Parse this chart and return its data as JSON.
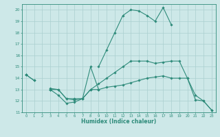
{
  "xlabel": "Humidex (Indice chaleur)",
  "x": [
    0,
    1,
    2,
    3,
    4,
    5,
    6,
    7,
    8,
    9,
    10,
    11,
    12,
    13,
    14,
    15,
    16,
    17,
    18,
    19,
    20,
    21,
    22,
    23
  ],
  "line1": [
    14.3,
    13.8,
    null,
    13.0,
    12.5,
    11.8,
    11.9,
    12.2,
    15.0,
    13.0,
    null,
    null,
    null,
    null,
    null,
    null,
    null,
    null,
    null,
    null,
    null,
    null,
    null,
    null
  ],
  "line2": [
    14.3,
    13.8,
    null,
    13.0,
    13.0,
    12.2,
    12.1,
    12.2,
    13.0,
    13.0,
    13.2,
    13.3,
    13.4,
    13.6,
    13.8,
    14.0,
    14.1,
    14.2,
    14.0,
    14.0,
    14.0,
    12.1,
    12.0,
    11.2
  ],
  "line3": [
    14.3,
    null,
    null,
    13.1,
    13.0,
    12.2,
    12.2,
    12.2,
    13.0,
    13.5,
    14.0,
    14.5,
    15.0,
    15.5,
    15.5,
    15.5,
    15.3,
    15.4,
    15.5,
    15.5,
    14.0,
    12.5,
    12.0,
    11.2
  ],
  "line4": [
    14.3,
    null,
    null,
    13.0,
    null,
    null,
    null,
    null,
    null,
    15.0,
    16.5,
    18.0,
    19.5,
    20.0,
    19.9,
    19.5,
    19.0,
    20.2,
    18.7,
    null,
    null,
    null,
    null,
    null
  ],
  "color": "#2e8b7a",
  "bg_color": "#cde8e8",
  "grid_color": "#aacfcf",
  "ylim": [
    11,
    20.5
  ],
  "xlim": [
    -0.5,
    23.5
  ],
  "yticks": [
    11,
    12,
    13,
    14,
    15,
    16,
    17,
    18,
    19,
    20
  ],
  "xticks": [
    0,
    1,
    2,
    3,
    4,
    5,
    6,
    7,
    8,
    9,
    10,
    11,
    12,
    13,
    14,
    15,
    16,
    17,
    18,
    19,
    20,
    21,
    22,
    23
  ]
}
